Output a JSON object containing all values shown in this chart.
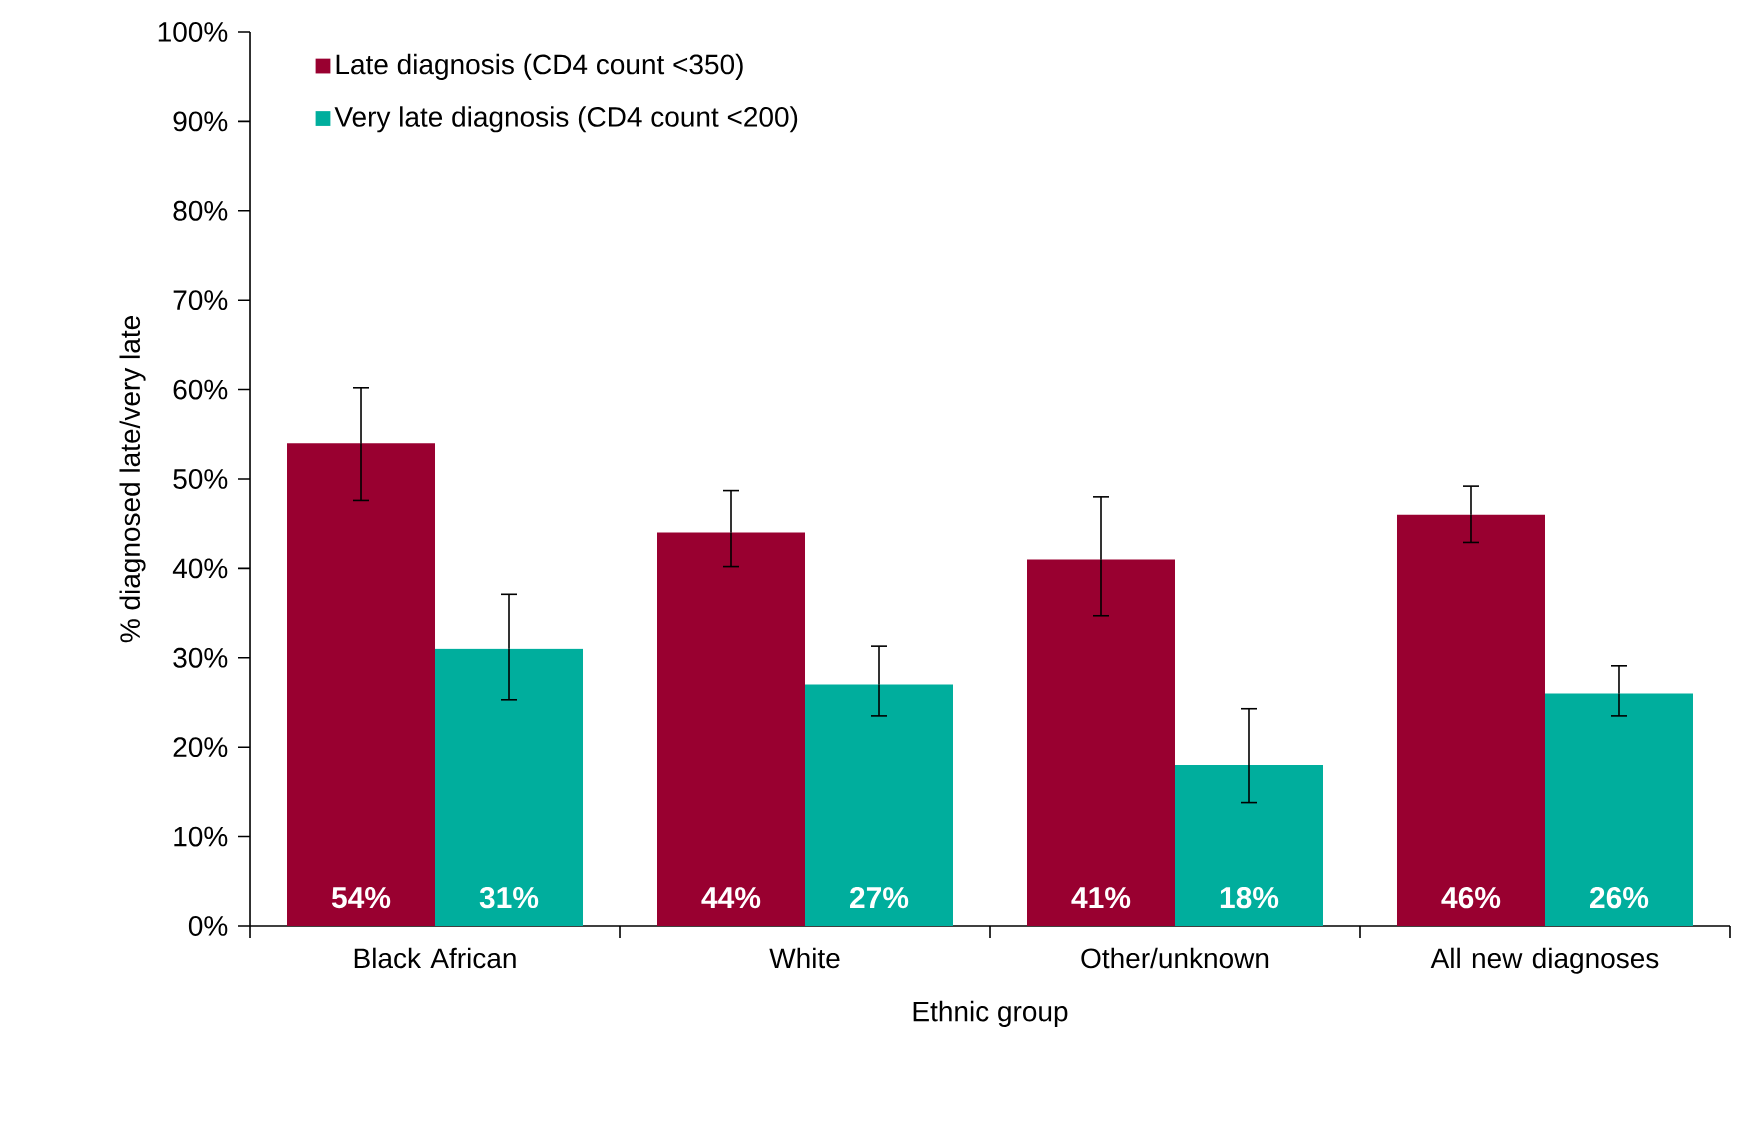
{
  "chart_data": {
    "type": "bar",
    "xlabel": "Ethnic group",
    "ylabel": "% diagnosed late/very late",
    "categories": [
      "Black African",
      "White",
      "Other/unknown",
      "All new diagnoses"
    ],
    "series": [
      {
        "name": "Late diagnosis (CD4 count <350)",
        "color": "#990030",
        "values": [
          54,
          44,
          41,
          46
        ],
        "errors": [
          [
            47.6,
            60.2
          ],
          [
            40.2,
            48.7
          ],
          [
            34.7,
            48.0
          ],
          [
            42.9,
            49.2
          ]
        ],
        "value_labels": [
          "54%",
          "44%",
          "41%",
          "46%"
        ]
      },
      {
        "name": "Very late diagnosis (CD4 count <200)",
        "color": "#00ae9d",
        "values": [
          31,
          27,
          18,
          26
        ],
        "errors": [
          [
            25.3,
            37.1
          ],
          [
            23.5,
            31.3
          ],
          [
            13.8,
            24.3
          ],
          [
            23.5,
            29.1
          ]
        ],
        "value_labels": [
          "31%",
          "27%",
          "18%",
          "26%"
        ]
      }
    ],
    "ylim": [
      0,
      100
    ],
    "yticks": [
      {
        "value": 0,
        "label": "0%"
      },
      {
        "value": 10,
        "label": "10%"
      },
      {
        "value": 20,
        "label": "20%"
      },
      {
        "value": 30,
        "label": "30%"
      },
      {
        "value": 40,
        "label": "40%"
      },
      {
        "value": 50,
        "label": "50%"
      },
      {
        "value": 60,
        "label": "60%"
      },
      {
        "value": 70,
        "label": "70%"
      },
      {
        "value": 80,
        "label": "80%"
      },
      {
        "value": 90,
        "label": "90%"
      },
      {
        "value": 100,
        "label": "100%"
      }
    ],
    "grid": false,
    "legend": "top left"
  }
}
